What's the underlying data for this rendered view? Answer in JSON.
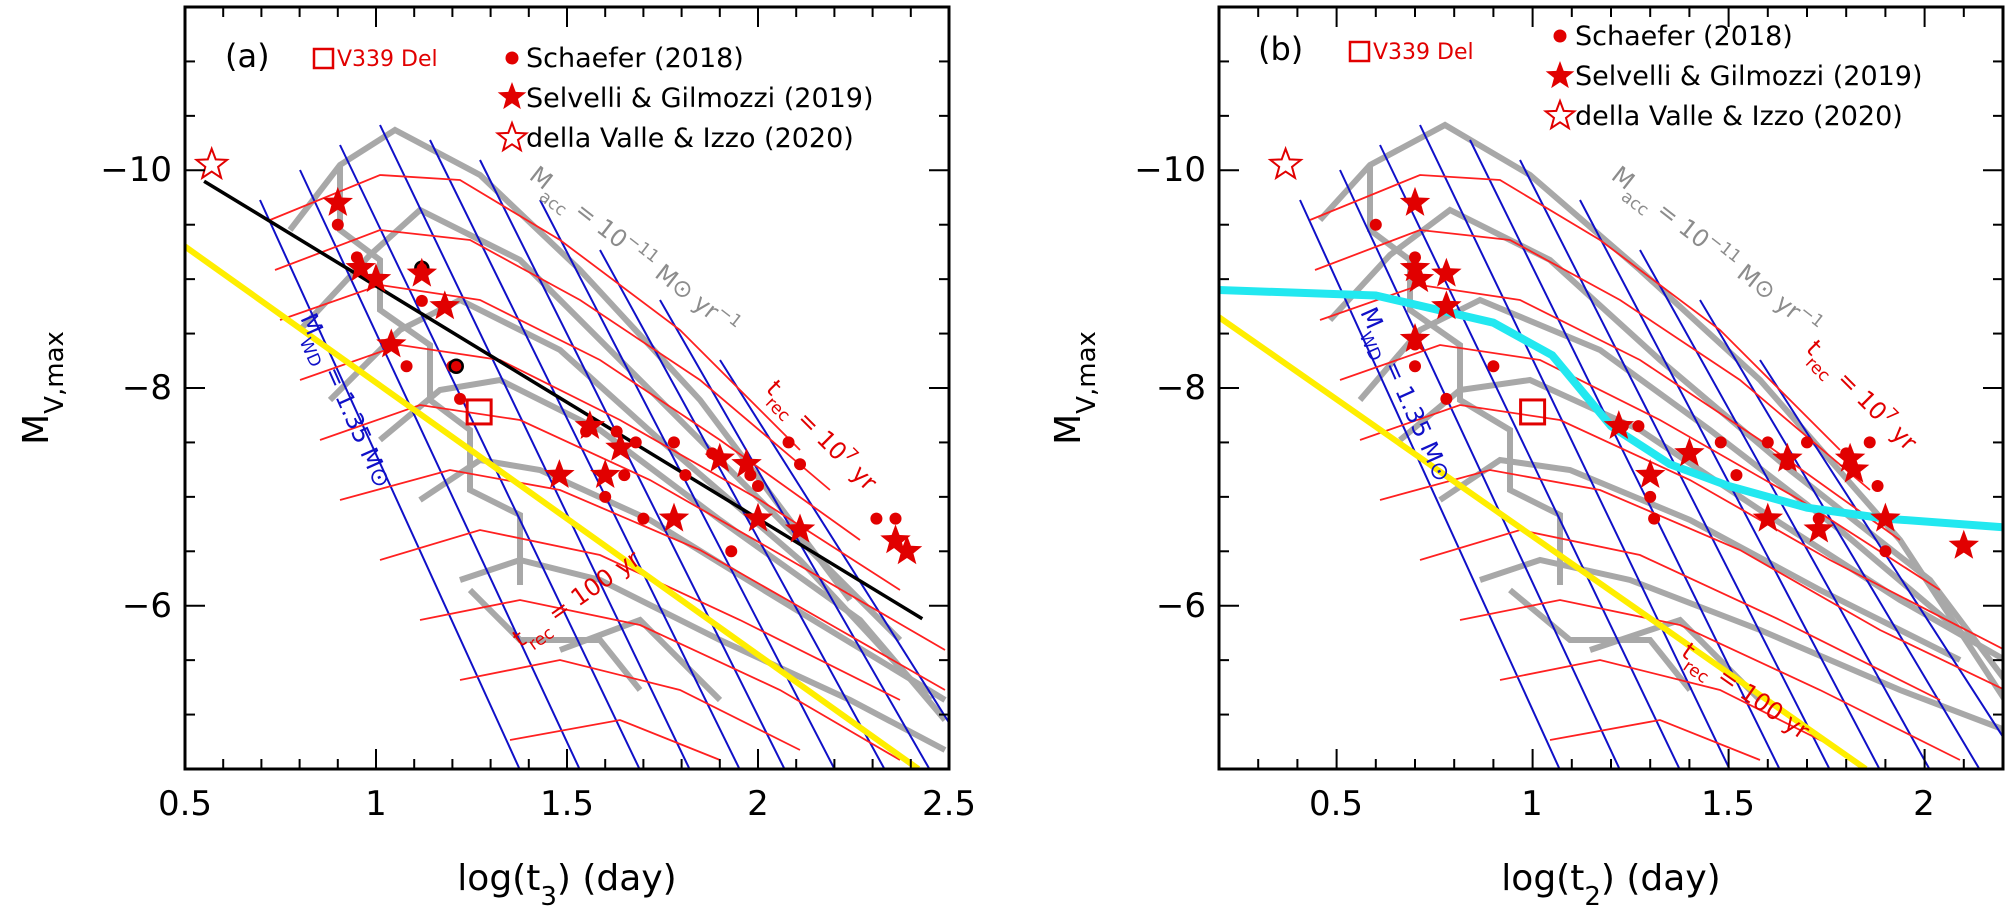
{
  "colors": {
    "data_red": "#e10000",
    "grid_red": "#ff2020",
    "grid_blue": "#1010c8",
    "grid_gray": "#a8a8a8",
    "yellow": "#ffee00",
    "cyan": "#22e8f0",
    "black_fit": "#000000"
  },
  "chart_data": [
    {
      "type": "scatter",
      "panel": "(a)",
      "xlabel": "log(t3) (day)",
      "ylabel": "MV,max",
      "xlim": [
        0.5,
        2.5
      ],
      "ylim": [
        -4.5,
        -11.5
      ],
      "y_inverted": true,
      "x_ticks": [
        "0.5",
        "1",
        "1.5",
        "2",
        "2.5"
      ],
      "y_ticks": [
        "−10",
        "−8",
        "−6"
      ],
      "legend": {
        "v339": "V339 Del",
        "schaefer": "Schaefer (2018)",
        "selvelli": "Selvelli & Gilmozzi (2019)",
        "dellavalle": "della Valle & Izzo (2020)"
      },
      "annotations": {
        "mdot": "Ṁacc = 10⁻¹¹ M⊙ yr⁻¹",
        "trec_high": "trec = 10⁷ yr",
        "trec_low": "trec = 100 yr",
        "mwd": "MWD = 1.35 M⊙"
      },
      "series": [
        {
          "name": "Schaefer (2018)",
          "marker": "circle",
          "x": [
            0.9,
            0.95,
            1.0,
            1.03,
            1.08,
            1.12,
            1.2,
            1.22,
            1.55,
            1.6,
            1.63,
            1.65,
            1.68,
            1.7,
            1.78,
            1.81,
            1.88,
            1.93,
            1.98,
            2.0,
            2.08,
            2.11,
            2.31,
            2.36
          ],
          "y": [
            -9.5,
            -9.2,
            -9.0,
            -8.4,
            -8.2,
            -8.8,
            -8.2,
            -7.9,
            -7.6,
            -7.0,
            -7.6,
            -7.2,
            -7.5,
            -6.8,
            -7.5,
            -7.2,
            -7.4,
            -6.5,
            -7.2,
            -7.1,
            -7.5,
            -7.3,
            -6.8,
            -6.8
          ]
        },
        {
          "name": "Schaefer (2018) outlined",
          "marker": "circle-outlined",
          "x": [
            1.12,
            1.21
          ],
          "y": [
            -9.1,
            -8.2
          ]
        },
        {
          "name": "Selvelli & Gilmozzi (2019)",
          "marker": "star-filled",
          "x": [
            0.9,
            0.96,
            1.0,
            1.04,
            1.12,
            1.18,
            1.48,
            1.56,
            1.6,
            1.64,
            1.78,
            1.9,
            1.97,
            2.0,
            2.11,
            2.36,
            2.39
          ],
          "y": [
            -9.7,
            -9.1,
            -9.0,
            -8.4,
            -9.05,
            -8.75,
            -7.2,
            -7.65,
            -7.2,
            -7.45,
            -6.8,
            -7.35,
            -7.3,
            -6.8,
            -6.7,
            -6.6,
            -6.5
          ]
        },
        {
          "name": "della Valle & Izzo (2020)",
          "marker": "star-open",
          "x": [
            0.57
          ],
          "y": [
            -10.05
          ]
        },
        {
          "name": "V339 Del",
          "marker": "square-open",
          "x": [
            1.27
          ],
          "y": [
            -7.78
          ]
        }
      ],
      "lines": {
        "fit_black": {
          "x": [
            0.55,
            2.43
          ],
          "y": [
            -9.9,
            -5.88
          ]
        },
        "yellow": {
          "x": [
            0.5,
            2.42
          ],
          "y": [
            -9.3,
            -4.5
          ]
        }
      }
    },
    {
      "type": "scatter",
      "panel": "(b)",
      "xlabel": "log(t2) (day)",
      "ylabel": "MV,max",
      "xlim": [
        0.2,
        2.2
      ],
      "ylim": [
        -4.5,
        -11.5
      ],
      "y_inverted": true,
      "x_ticks": [
        "0.5",
        "1",
        "1.5",
        "2"
      ],
      "y_ticks": [
        "−10",
        "−8",
        "−6"
      ],
      "legend": {
        "v339": "V339 Del",
        "schaefer": "Schaefer (2018)",
        "selvelli": "Selvelli & Gilmozzi (2019)",
        "dellavalle": "della Valle & Izzo (2020)"
      },
      "annotations": {
        "mdot": "Ṁacc = 10⁻¹¹ M⊙ yr⁻¹",
        "trec_high": "trec = 10⁷ yr",
        "trec_low": "trec = 100 yr",
        "mwd": "MWD = 1.35 M⊙"
      },
      "series": [
        {
          "name": "Schaefer (2018)",
          "marker": "circle",
          "x": [
            0.6,
            0.7,
            0.7,
            0.7,
            0.78,
            0.9,
            1.23,
            1.27,
            1.3,
            1.31,
            1.48,
            1.52,
            1.6,
            1.65,
            1.7,
            1.73,
            1.8,
            1.86,
            1.88,
            1.9
          ],
          "y": [
            -9.5,
            -9.2,
            -8.4,
            -8.2,
            -7.9,
            -8.2,
            -7.65,
            -7.65,
            -7.0,
            -6.8,
            -7.5,
            -7.2,
            -7.5,
            -7.3,
            -7.5,
            -6.8,
            -7.4,
            -7.5,
            -7.1,
            -6.5
          ]
        },
        {
          "name": "Selvelli & Gilmozzi (2019)",
          "marker": "star-filled",
          "x": [
            0.7,
            0.7,
            0.71,
            0.7,
            0.78,
            0.78,
            1.22,
            1.3,
            1.4,
            1.6,
            1.65,
            1.73,
            1.81,
            1.82,
            1.9,
            2.1
          ],
          "y": [
            -9.7,
            -9.1,
            -9.0,
            -8.45,
            -9.05,
            -8.75,
            -7.65,
            -7.2,
            -7.4,
            -6.8,
            -7.35,
            -6.7,
            -7.35,
            -7.25,
            -6.8,
            -6.55
          ]
        },
        {
          "name": "della Valle & Izzo (2020)",
          "marker": "star-open",
          "x": [
            0.37
          ],
          "y": [
            -10.05
          ]
        },
        {
          "name": "V339 Del",
          "marker": "square-open",
          "x": [
            1.0
          ],
          "y": [
            -7.78
          ]
        }
      ],
      "lines": {
        "yellow": {
          "x": [
            0.2,
            1.85
          ],
          "y": [
            -8.65,
            -4.5
          ]
        },
        "cyan": {
          "x": [
            0.2,
            0.6,
            0.9,
            1.05,
            1.2,
            1.35,
            1.5,
            1.7,
            1.9,
            2.2
          ],
          "y": [
            -8.9,
            -8.85,
            -8.6,
            -8.3,
            -7.65,
            -7.3,
            -7.1,
            -6.9,
            -6.8,
            -6.72
          ]
        }
      }
    }
  ]
}
